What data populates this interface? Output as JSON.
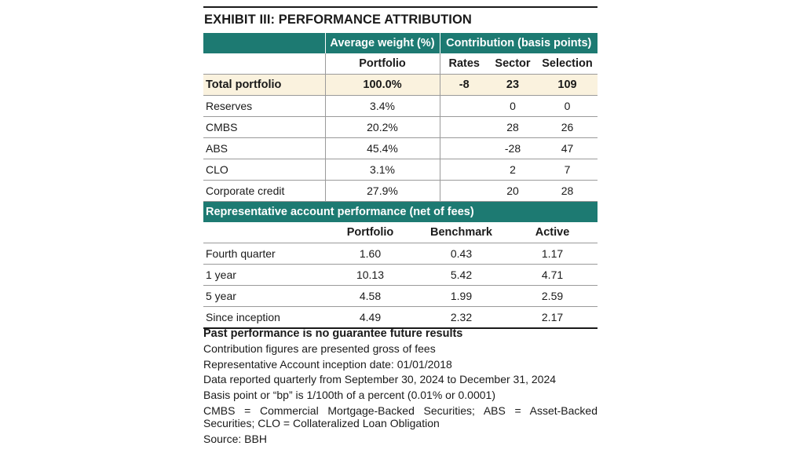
{
  "title": "EXHIBIT III: PERFORMANCE ATTRIBUTION",
  "attribution": {
    "group_headers": {
      "weight": "Average weight (%)",
      "contribution": "Contribution (basis points)"
    },
    "column_headers": [
      "Portfolio",
      "Rates",
      "Sector",
      "Selection"
    ],
    "total": {
      "label": "Total portfolio",
      "portfolio": "100.0%",
      "rates": "-8",
      "sector": "23",
      "selection": "109"
    },
    "rows": [
      {
        "label": "Reserves",
        "portfolio": "3.4%",
        "rates": "",
        "sector": "0",
        "selection": "0"
      },
      {
        "label": "CMBS",
        "portfolio": "20.2%",
        "rates": "",
        "sector": "28",
        "selection": "26"
      },
      {
        "label": "ABS",
        "portfolio": "45.4%",
        "rates": "",
        "sector": "-28",
        "selection": "47"
      },
      {
        "label": "CLO",
        "portfolio": "3.1%",
        "rates": "",
        "sector": "2",
        "selection": "7"
      },
      {
        "label": "Corporate credit",
        "portfolio": "27.9%",
        "rates": "",
        "sector": "20",
        "selection": "28"
      }
    ]
  },
  "performance": {
    "header": "Representative account performance (net of fees)",
    "column_headers": [
      "Portfolio",
      "Benchmark",
      "Active"
    ],
    "rows": [
      {
        "label": "Fourth quarter",
        "portfolio": "1.60",
        "benchmark": "0.43",
        "active": "1.17"
      },
      {
        "label": "1 year",
        "portfolio": "10.13",
        "benchmark": "5.42",
        "active": "4.71"
      },
      {
        "label": "5 year",
        "portfolio": "4.58",
        "benchmark": "1.99",
        "active": "2.59"
      },
      {
        "label": "Since inception",
        "portfolio": "4.49",
        "benchmark": "2.32",
        "active": "2.17"
      }
    ]
  },
  "notes": {
    "disclaimer": "Past performance is no guarantee future results",
    "lines": [
      "Contribution figures are presented gross of fees",
      "Representative Account inception date: 01/01/2018",
      "Data reported quarterly from September 30, 2024 to December 31, 2024",
      "Basis point or “bp” is 1/100th of a percent (0.01% or 0.0001)"
    ],
    "abbreviations": "CMBS = Commercial Mortgage-Backed Securities; ABS = Asset-Backed Securities; CLO = Collateralized Loan Obligation",
    "source": "Source: BBH"
  },
  "colors": {
    "header_teal": "#1d7a72",
    "total_row_cream": "#faf2de"
  }
}
